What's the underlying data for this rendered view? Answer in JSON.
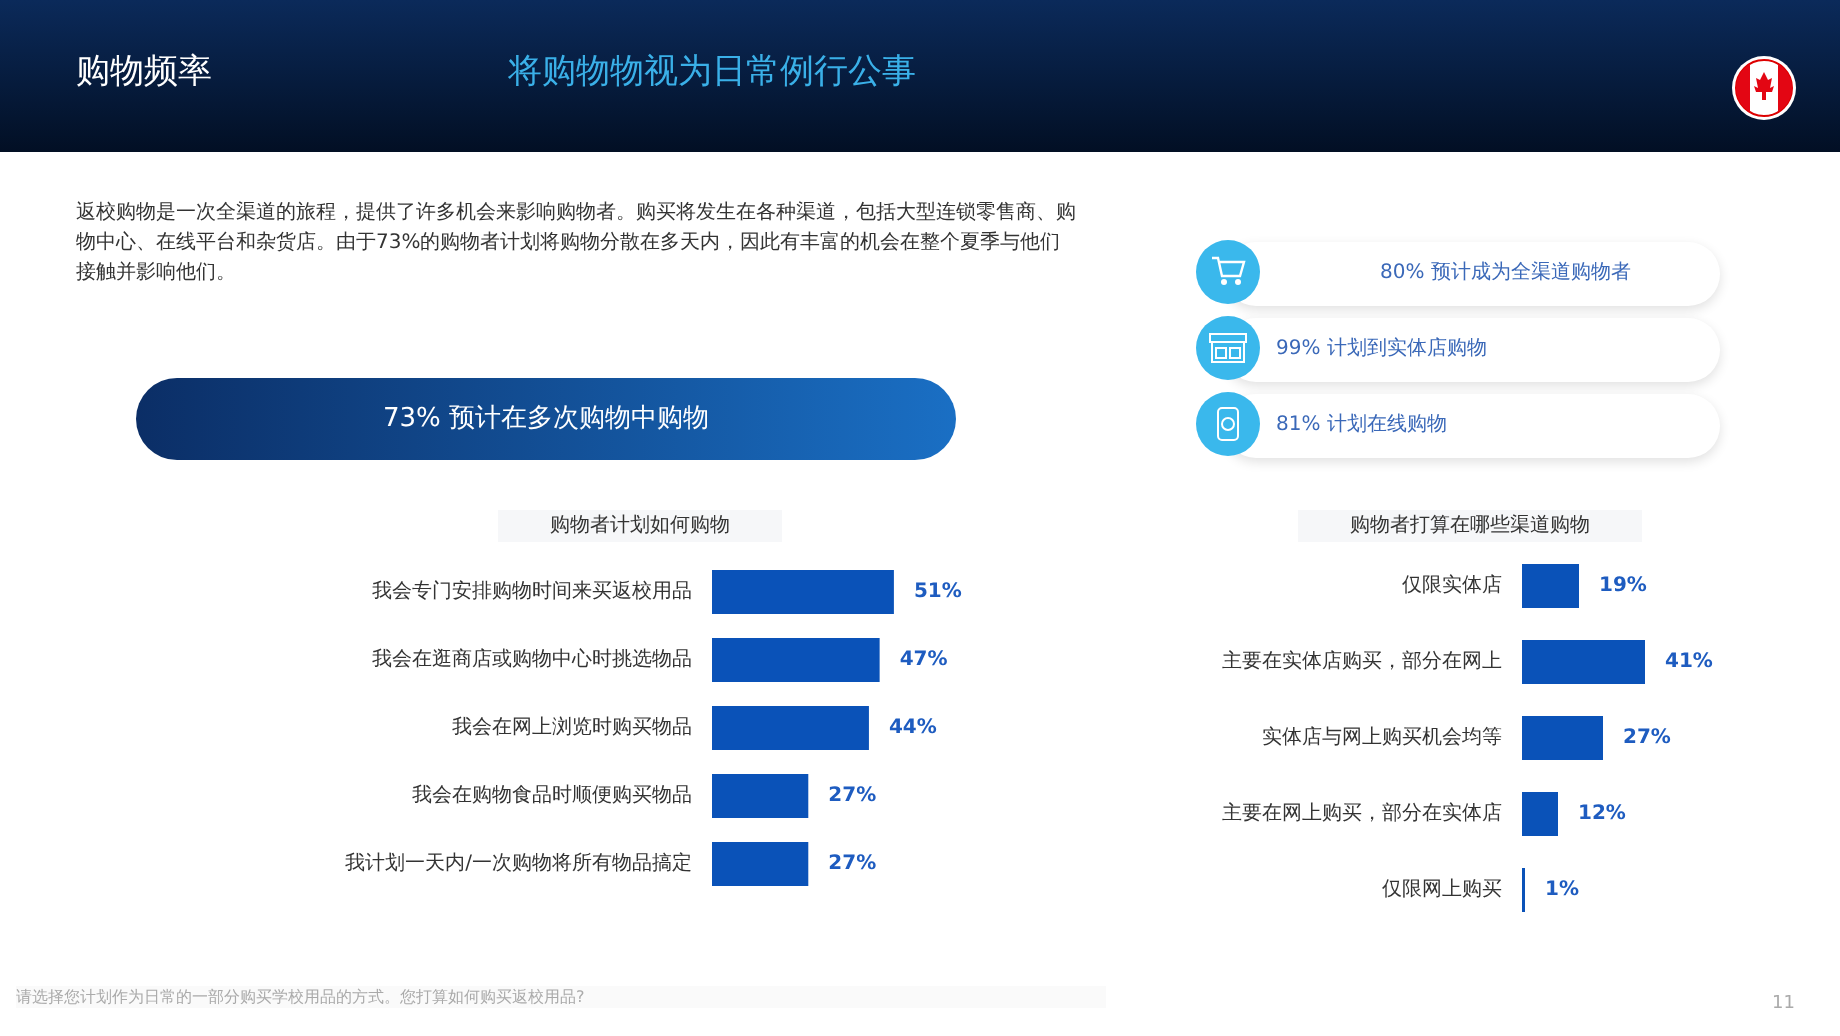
{
  "chart_data": [
    {
      "type": "other",
      "title": "购物频率",
      "subtitle": "将购物物视为日常例行公事",
      "annotations": [
        "返校购物是一次全渠道的旅程，提供了许多机会来影响购物者。购买将发生在各种渠道，包括大型连锁零售商、购物中心、在线平台和杂货店。由于73%的购物者计划将购物分散在多天内，因此有丰富的机会在整个夏季与他们接触并影响他们。",
        "73% 预计在多次购物中购物",
        "80% 预计成为全渠道购物者",
        "99% 计划到实体店购物",
        "81% 计划在线购物",
        "请选择您计划作为日常的一部分购买学校用品的方式。您打算如何购买返校用品?",
        "11"
      ]
    },
    {
      "type": "bar",
      "orientation": "horizontal",
      "title": "购物者计划如何购物",
      "color": "#0a52b8",
      "categories": [
        "我会专门安排购物时间来买返校用品",
        "我会在逛商店或购物中心时挑选物品",
        "我会在网上浏览时购买物品",
        "我会在购物食品时顺便购买物品",
        "我计划一天内/一次购物将所有物品搞定"
      ],
      "values": [
        51,
        47,
        44,
        27,
        27
      ],
      "value_labels": [
        "51%",
        "47%",
        "44%",
        "27%",
        "27%"
      ]
    },
    {
      "type": "bar",
      "orientation": "horizontal",
      "title": "购物者打算在哪些渠道购物",
      "color": "#0a52b8",
      "categories": [
        "仅限实体店",
        "主要在实体店购买，部分在网上",
        "实体店与网上购买机会均等",
        "主要在网上购买，部分在实体店",
        "仅限网上购买"
      ],
      "values": [
        19,
        41,
        27,
        12,
        1
      ],
      "value_labels": [
        "19%",
        "41%",
        "27%",
        "12%",
        "1%"
      ]
    }
  ]
}
